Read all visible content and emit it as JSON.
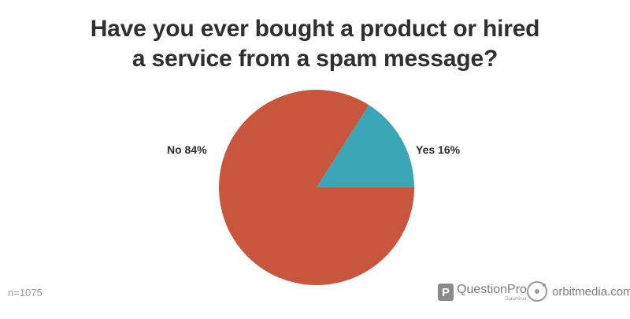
{
  "chart_data": {
    "type": "pie",
    "title_lines": [
      "Have you ever bought a product or hired",
      "a service from a spam message?"
    ],
    "categories": [
      "No",
      "Yes"
    ],
    "values": [
      84,
      16
    ],
    "labels": [
      "No 84%",
      "Yes 16%"
    ],
    "colors": [
      "#c8553c",
      "#3aa6b5"
    ],
    "legend": "none"
  },
  "footer": {
    "sample_size": "n=1075",
    "questionpro_logo": {
      "mark": "P",
      "name": "QuestionPro",
      "tagline": "Dataminer"
    },
    "orbitmedia_logo": {
      "icon": "orbit-circle-icon",
      "name": "orbitmedia.com"
    }
  }
}
